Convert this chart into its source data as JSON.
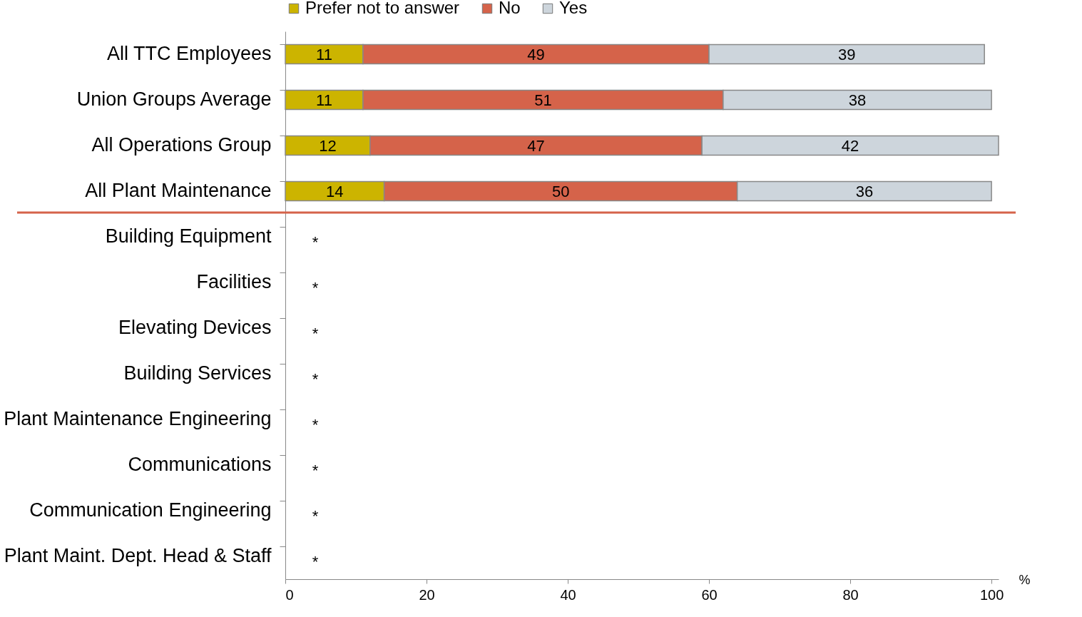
{
  "chart_data": {
    "type": "bar",
    "orientation": "horizontal",
    "stacked": true,
    "data_labels": true,
    "legend": "top",
    "xlabel": "%",
    "categories": [
      "All TTC Employees",
      "Union Groups Average",
      "All Operations Group",
      "All Plant Maintenance",
      "Building Equipment",
      "Facilities",
      "Elevating Devices",
      "Building Services",
      "Plant Maintenance Engineering",
      "Communications",
      "Communication Engineering",
      "Plant Maint. Dept. Head & Staff"
    ],
    "series": [
      {
        "name": "Prefer not to answer",
        "color": "#ccb400",
        "values": [
          11,
          11,
          12,
          14,
          null,
          null,
          null,
          null,
          null,
          null,
          null,
          null
        ]
      },
      {
        "name": "No",
        "color": "#d5634a",
        "values": [
          49,
          51,
          47,
          50,
          null,
          null,
          null,
          null,
          null,
          null,
          null,
          null
        ]
      },
      {
        "name": "Yes",
        "color": "#cdd5dc",
        "values": [
          39,
          38,
          42,
          36,
          null,
          null,
          null,
          null,
          null,
          null,
          null,
          null
        ]
      }
    ],
    "xlim": [
      0,
      101
    ],
    "xticks": [
      0,
      20,
      40,
      60,
      80,
      100
    ],
    "ref_lines": [
      {
        "axis": "y",
        "value": "Building Equipment",
        "color": "#d5634a"
      }
    ],
    "annotations": [
      "*",
      "*",
      "*",
      "*",
      "*",
      "*",
      "*",
      "*"
    ]
  }
}
